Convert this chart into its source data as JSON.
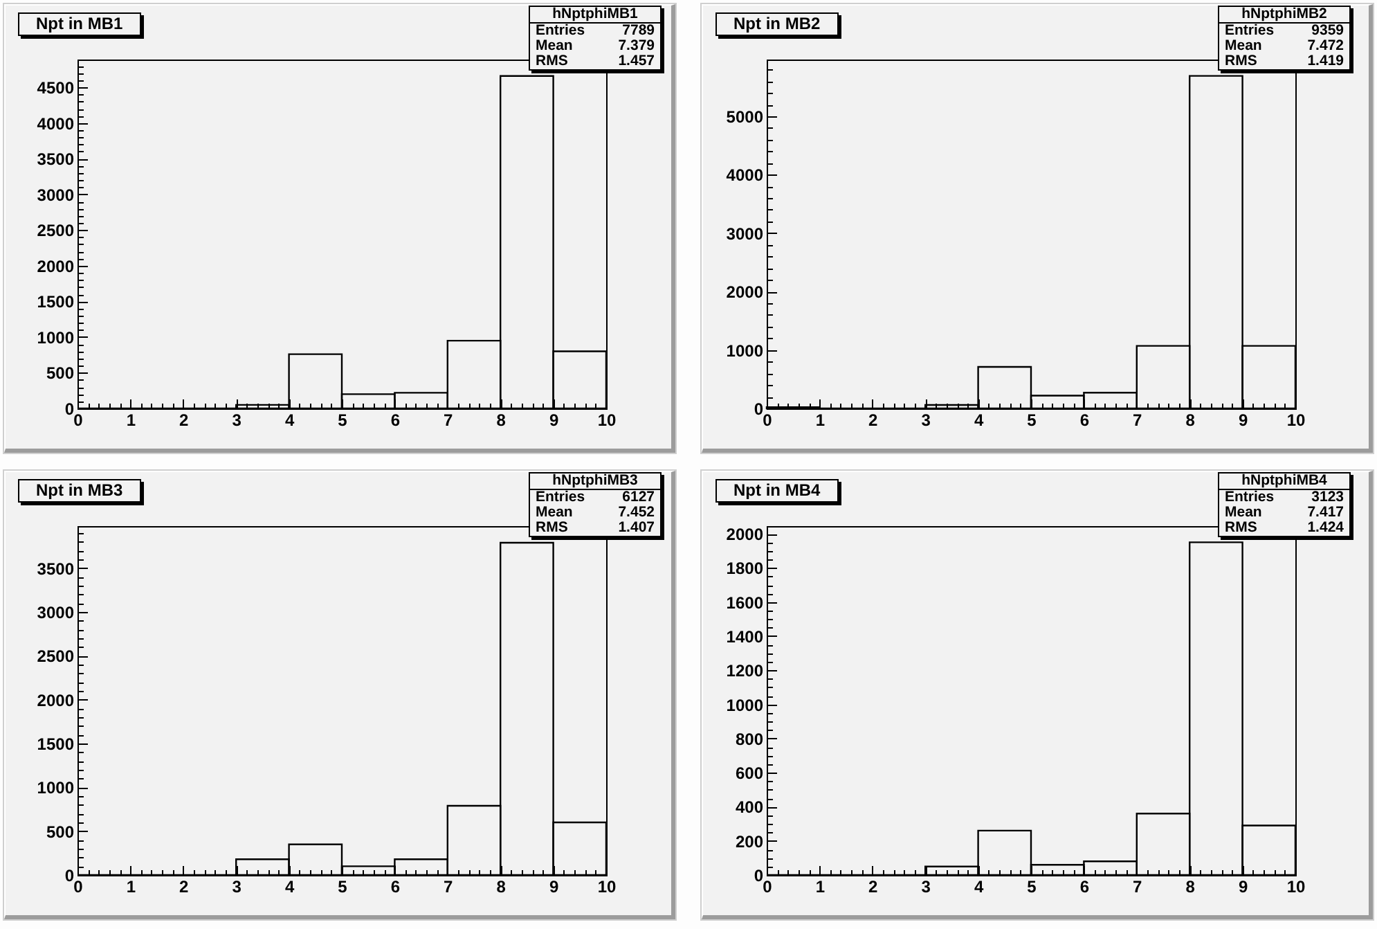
{
  "chart_data": [
    {
      "type": "histogram",
      "title": "Npt in MB1",
      "bins": [
        0,
        1,
        2,
        3,
        4,
        5,
        6,
        7,
        8,
        9,
        10
      ],
      "values": [
        0,
        0,
        0,
        50,
        760,
        200,
        220,
        950,
        4660,
        800
      ],
      "color": "#000000",
      "xlim": [
        0,
        10
      ],
      "ylim": [
        0,
        4890
      ],
      "xticks": [
        0,
        {
          "value": 0.2,
          "label": null
        },
        {
          "value": 0.4,
          "label": null
        },
        {
          "value": 0.6,
          "label": null
        },
        {
          "value": 0.8,
          "label": null
        },
        1,
        {
          "value": 1.2,
          "label": null
        },
        {
          "value": 1.4,
          "label": null
        },
        {
          "value": 1.6,
          "label": null
        },
        {
          "value": 1.8,
          "label": null
        },
        2,
        {
          "value": 2.2,
          "label": null
        },
        {
          "value": 2.4,
          "label": null
        },
        {
          "value": 2.6,
          "label": null
        },
        {
          "value": 2.8,
          "label": null
        },
        3,
        {
          "value": 3.2,
          "label": null
        },
        {
          "value": 3.4,
          "label": null
        },
        {
          "value": 3.6,
          "label": null
        },
        {
          "value": 3.8,
          "label": null
        },
        4,
        {
          "value": 4.2,
          "label": null
        },
        {
          "value": 4.4,
          "label": null
        },
        {
          "value": 4.6,
          "label": null
        },
        {
          "value": 4.8,
          "label": null
        },
        5,
        {
          "value": 5.2,
          "label": null
        },
        {
          "value": 5.4,
          "label": null
        },
        {
          "value": 5.6,
          "label": null
        },
        {
          "value": 5.8,
          "label": null
        },
        6,
        {
          "value": 6.2,
          "label": null
        },
        {
          "value": 6.4,
          "label": null
        },
        {
          "value": 6.6,
          "label": null
        },
        {
          "value": 6.8,
          "label": null
        },
        7,
        {
          "value": 7.2,
          "label": null
        },
        {
          "value": 7.4,
          "label": null
        },
        {
          "value": 7.6,
          "label": null
        },
        {
          "value": 7.8,
          "label": null
        },
        8,
        {
          "value": 8.2,
          "label": null
        },
        {
          "value": 8.4,
          "label": null
        },
        {
          "value": 8.6,
          "label": null
        },
        {
          "value": 8.8,
          "label": null
        },
        9,
        {
          "value": 9.2,
          "label": null
        },
        {
          "value": 9.4,
          "label": null
        },
        {
          "value": 9.6,
          "label": null
        },
        {
          "value": 9.8,
          "label": null
        },
        10
      ],
      "yticks": [
        0,
        {
          "value": 100,
          "label": null
        },
        {
          "value": 200,
          "label": null
        },
        {
          "value": 300,
          "label": null
        },
        {
          "value": 400,
          "label": null
        },
        500,
        {
          "value": 600,
          "label": null
        },
        {
          "value": 700,
          "label": null
        },
        {
          "value": 800,
          "label": null
        },
        {
          "value": 900,
          "label": null
        },
        1000,
        {
          "value": 1100,
          "label": null
        },
        {
          "value": 1200,
          "label": null
        },
        {
          "value": 1300,
          "label": null
        },
        {
          "value": 1400,
          "label": null
        },
        1500,
        {
          "value": 1600,
          "label": null
        },
        {
          "value": 1700,
          "label": null
        },
        {
          "value": 1800,
          "label": null
        },
        {
          "value": 1900,
          "label": null
        },
        2000,
        {
          "value": 2100,
          "label": null
        },
        {
          "value": 2200,
          "label": null
        },
        {
          "value": 2300,
          "label": null
        },
        {
          "value": 2400,
          "label": null
        },
        2500,
        {
          "value": 2600,
          "label": null
        },
        {
          "value": 2700,
          "label": null
        },
        {
          "value": 2800,
          "label": null
        },
        {
          "value": 2900,
          "label": null
        },
        3000,
        {
          "value": 3100,
          "label": null
        },
        {
          "value": 3200,
          "label": null
        },
        {
          "value": 3300,
          "label": null
        },
        {
          "value": 3400,
          "label": null
        },
        3500,
        {
          "value": 3600,
          "label": null
        },
        {
          "value": 3700,
          "label": null
        },
        {
          "value": 3800,
          "label": null
        },
        {
          "value": 3900,
          "label": null
        },
        4000,
        {
          "value": 4100,
          "label": null
        },
        {
          "value": 4200,
          "label": null
        },
        {
          "value": 4300,
          "label": null
        },
        {
          "value": 4400,
          "label": null
        },
        4500,
        {
          "value": 4600,
          "label": null
        },
        {
          "value": 4700,
          "label": null
        },
        {
          "value": 4800,
          "label": null
        }
      ],
      "annotations": [
        "hNptphiMB1",
        "Entries",
        "7789",
        "Mean",
        "7.379",
        "RMS",
        "1.457"
      ]
    },
    {
      "type": "histogram",
      "title": "Npt in MB2",
      "bins": [
        0,
        1,
        2,
        3,
        4,
        5,
        6,
        7,
        8,
        9,
        10
      ],
      "values": [
        20,
        0,
        0,
        60,
        710,
        220,
        270,
        1070,
        5690,
        1070
      ],
      "color": "#000000",
      "xlim": [
        0,
        10
      ],
      "ylim": [
        0,
        5970
      ],
      "xticks": [
        0,
        {
          "value": 0.2,
          "label": null
        },
        {
          "value": 0.4,
          "label": null
        },
        {
          "value": 0.6,
          "label": null
        },
        {
          "value": 0.8,
          "label": null
        },
        1,
        {
          "value": 1.2,
          "label": null
        },
        {
          "value": 1.4,
          "label": null
        },
        {
          "value": 1.6,
          "label": null
        },
        {
          "value": 1.8,
          "label": null
        },
        2,
        {
          "value": 2.2,
          "label": null
        },
        {
          "value": 2.4,
          "label": null
        },
        {
          "value": 2.6,
          "label": null
        },
        {
          "value": 2.8,
          "label": null
        },
        3,
        {
          "value": 3.2,
          "label": null
        },
        {
          "value": 3.4,
          "label": null
        },
        {
          "value": 3.6,
          "label": null
        },
        {
          "value": 3.8,
          "label": null
        },
        4,
        {
          "value": 4.2,
          "label": null
        },
        {
          "value": 4.4,
          "label": null
        },
        {
          "value": 4.6,
          "label": null
        },
        {
          "value": 4.8,
          "label": null
        },
        5,
        {
          "value": 5.2,
          "label": null
        },
        {
          "value": 5.4,
          "label": null
        },
        {
          "value": 5.6,
          "label": null
        },
        {
          "value": 5.8,
          "label": null
        },
        6,
        {
          "value": 6.2,
          "label": null
        },
        {
          "value": 6.4,
          "label": null
        },
        {
          "value": 6.6,
          "label": null
        },
        {
          "value": 6.8,
          "label": null
        },
        7,
        {
          "value": 7.2,
          "label": null
        },
        {
          "value": 7.4,
          "label": null
        },
        {
          "value": 7.6,
          "label": null
        },
        {
          "value": 7.8,
          "label": null
        },
        8,
        {
          "value": 8.2,
          "label": null
        },
        {
          "value": 8.4,
          "label": null
        },
        {
          "value": 8.6,
          "label": null
        },
        {
          "value": 8.8,
          "label": null
        },
        9,
        {
          "value": 9.2,
          "label": null
        },
        {
          "value": 9.4,
          "label": null
        },
        {
          "value": 9.6,
          "label": null
        },
        {
          "value": 9.8,
          "label": null
        },
        10
      ],
      "yticks": [
        0,
        {
          "value": 200,
          "label": null
        },
        {
          "value": 400,
          "label": null
        },
        {
          "value": 600,
          "label": null
        },
        {
          "value": 800,
          "label": null
        },
        1000,
        {
          "value": 1200,
          "label": null
        },
        {
          "value": 1400,
          "label": null
        },
        {
          "value": 1600,
          "label": null
        },
        {
          "value": 1800,
          "label": null
        },
        2000,
        {
          "value": 2200,
          "label": null
        },
        {
          "value": 2400,
          "label": null
        },
        {
          "value": 2600,
          "label": null
        },
        {
          "value": 2800,
          "label": null
        },
        3000,
        {
          "value": 3200,
          "label": null
        },
        {
          "value": 3400,
          "label": null
        },
        {
          "value": 3600,
          "label": null
        },
        {
          "value": 3800,
          "label": null
        },
        4000,
        {
          "value": 4200,
          "label": null
        },
        {
          "value": 4400,
          "label": null
        },
        {
          "value": 4600,
          "label": null
        },
        {
          "value": 4800,
          "label": null
        },
        5000,
        {
          "value": 5200,
          "label": null
        },
        {
          "value": 5400,
          "label": null
        },
        {
          "value": 5600,
          "label": null
        },
        {
          "value": 5800,
          "label": null
        }
      ],
      "annotations": [
        "hNptphiMB2",
        "Entries",
        "9359",
        "Mean",
        "7.472",
        "RMS",
        "1.419"
      ]
    },
    {
      "type": "histogram",
      "title": "Npt in MB3",
      "bins": [
        0,
        1,
        2,
        3,
        4,
        5,
        6,
        7,
        8,
        9,
        10
      ],
      "values": [
        0,
        0,
        0,
        180,
        350,
        100,
        180,
        790,
        3790,
        600
      ],
      "color": "#000000",
      "xlim": [
        0,
        10
      ],
      "ylim": [
        0,
        3980
      ],
      "xticks": [
        0,
        {
          "value": 0.2,
          "label": null
        },
        {
          "value": 0.4,
          "label": null
        },
        {
          "value": 0.6,
          "label": null
        },
        {
          "value": 0.8,
          "label": null
        },
        1,
        {
          "value": 1.2,
          "label": null
        },
        {
          "value": 1.4,
          "label": null
        },
        {
          "value": 1.6,
          "label": null
        },
        {
          "value": 1.8,
          "label": null
        },
        2,
        {
          "value": 2.2,
          "label": null
        },
        {
          "value": 2.4,
          "label": null
        },
        {
          "value": 2.6,
          "label": null
        },
        {
          "value": 2.8,
          "label": null
        },
        3,
        {
          "value": 3.2,
          "label": null
        },
        {
          "value": 3.4,
          "label": null
        },
        {
          "value": 3.6,
          "label": null
        },
        {
          "value": 3.8,
          "label": null
        },
        4,
        {
          "value": 4.2,
          "label": null
        },
        {
          "value": 4.4,
          "label": null
        },
        {
          "value": 4.6,
          "label": null
        },
        {
          "value": 4.8,
          "label": null
        },
        5,
        {
          "value": 5.2,
          "label": null
        },
        {
          "value": 5.4,
          "label": null
        },
        {
          "value": 5.6,
          "label": null
        },
        {
          "value": 5.8,
          "label": null
        },
        6,
        {
          "value": 6.2,
          "label": null
        },
        {
          "value": 6.4,
          "label": null
        },
        {
          "value": 6.6,
          "label": null
        },
        {
          "value": 6.8,
          "label": null
        },
        7,
        {
          "value": 7.2,
          "label": null
        },
        {
          "value": 7.4,
          "label": null
        },
        {
          "value": 7.6,
          "label": null
        },
        {
          "value": 7.8,
          "label": null
        },
        8,
        {
          "value": 8.2,
          "label": null
        },
        {
          "value": 8.4,
          "label": null
        },
        {
          "value": 8.6,
          "label": null
        },
        {
          "value": 8.8,
          "label": null
        },
        9,
        {
          "value": 9.2,
          "label": null
        },
        {
          "value": 9.4,
          "label": null
        },
        {
          "value": 9.6,
          "label": null
        },
        {
          "value": 9.8,
          "label": null
        },
        10
      ],
      "yticks": [
        0,
        {
          "value": 100,
          "label": null
        },
        {
          "value": 200,
          "label": null
        },
        {
          "value": 300,
          "label": null
        },
        {
          "value": 400,
          "label": null
        },
        500,
        {
          "value": 600,
          "label": null
        },
        {
          "value": 700,
          "label": null
        },
        {
          "value": 800,
          "label": null
        },
        {
          "value": 900,
          "label": null
        },
        1000,
        {
          "value": 1100,
          "label": null
        },
        {
          "value": 1200,
          "label": null
        },
        {
          "value": 1300,
          "label": null
        },
        {
          "value": 1400,
          "label": null
        },
        1500,
        {
          "value": 1600,
          "label": null
        },
        {
          "value": 1700,
          "label": null
        },
        {
          "value": 1800,
          "label": null
        },
        {
          "value": 1900,
          "label": null
        },
        2000,
        {
          "value": 2100,
          "label": null
        },
        {
          "value": 2200,
          "label": null
        },
        {
          "value": 2300,
          "label": null
        },
        {
          "value": 2400,
          "label": null
        },
        2500,
        {
          "value": 2600,
          "label": null
        },
        {
          "value": 2700,
          "label": null
        },
        {
          "value": 2800,
          "label": null
        },
        {
          "value": 2900,
          "label": null
        },
        3000,
        {
          "value": 3100,
          "label": null
        },
        {
          "value": 3200,
          "label": null
        },
        {
          "value": 3300,
          "label": null
        },
        {
          "value": 3400,
          "label": null
        },
        3500,
        {
          "value": 3600,
          "label": null
        },
        {
          "value": 3700,
          "label": null
        },
        {
          "value": 3800,
          "label": null
        },
        {
          "value": 3900,
          "label": null
        }
      ],
      "annotations": [
        "hNptphiMB3",
        "Entries",
        "6127",
        "Mean",
        "7.452",
        "RMS",
        "1.407"
      ]
    },
    {
      "type": "histogram",
      "title": "Npt in MB4",
      "bins": [
        0,
        1,
        2,
        3,
        4,
        5,
        6,
        7,
        8,
        9,
        10
      ],
      "values": [
        0,
        0,
        0,
        50,
        260,
        60,
        80,
        360,
        1950,
        290
      ],
      "color": "#000000",
      "xlim": [
        0,
        10
      ],
      "ylim": [
        0,
        2045
      ],
      "xticks": [
        0,
        {
          "value": 0.2,
          "label": null
        },
        {
          "value": 0.4,
          "label": null
        },
        {
          "value": 0.6,
          "label": null
        },
        {
          "value": 0.8,
          "label": null
        },
        1,
        {
          "value": 1.2,
          "label": null
        },
        {
          "value": 1.4,
          "label": null
        },
        {
          "value": 1.6,
          "label": null
        },
        {
          "value": 1.8,
          "label": null
        },
        2,
        {
          "value": 2.2,
          "label": null
        },
        {
          "value": 2.4,
          "label": null
        },
        {
          "value": 2.6,
          "label": null
        },
        {
          "value": 2.8,
          "label": null
        },
        3,
        {
          "value": 3.2,
          "label": null
        },
        {
          "value": 3.4,
          "label": null
        },
        {
          "value": 3.6,
          "label": null
        },
        {
          "value": 3.8,
          "label": null
        },
        4,
        {
          "value": 4.2,
          "label": null
        },
        {
          "value": 4.4,
          "label": null
        },
        {
          "value": 4.6,
          "label": null
        },
        {
          "value": 4.8,
          "label": null
        },
        5,
        {
          "value": 5.2,
          "label": null
        },
        {
          "value": 5.4,
          "label": null
        },
        {
          "value": 5.6,
          "label": null
        },
        {
          "value": 5.8,
          "label": null
        },
        6,
        {
          "value": 6.2,
          "label": null
        },
        {
          "value": 6.4,
          "label": null
        },
        {
          "value": 6.6,
          "label": null
        },
        {
          "value": 6.8,
          "label": null
        },
        7,
        {
          "value": 7.2,
          "label": null
        },
        {
          "value": 7.4,
          "label": null
        },
        {
          "value": 7.6,
          "label": null
        },
        {
          "value": 7.8,
          "label": null
        },
        8,
        {
          "value": 8.2,
          "label": null
        },
        {
          "value": 8.4,
          "label": null
        },
        {
          "value": 8.6,
          "label": null
        },
        {
          "value": 8.8,
          "label": null
        },
        9,
        {
          "value": 9.2,
          "label": null
        },
        {
          "value": 9.4,
          "label": null
        },
        {
          "value": 9.6,
          "label": null
        },
        {
          "value": 9.8,
          "label": null
        },
        10
      ],
      "yticks": [
        0,
        {
          "value": 50,
          "label": null
        },
        {
          "value": 100,
          "label": null
        },
        {
          "value": 150,
          "label": null
        },
        200,
        {
          "value": 250,
          "label": null
        },
        {
          "value": 300,
          "label": null
        },
        {
          "value": 350,
          "label": null
        },
        400,
        {
          "value": 450,
          "label": null
        },
        {
          "value": 500,
          "label": null
        },
        {
          "value": 550,
          "label": null
        },
        600,
        {
          "value": 650,
          "label": null
        },
        {
          "value": 700,
          "label": null
        },
        {
          "value": 750,
          "label": null
        },
        800,
        {
          "value": 850,
          "label": null
        },
        {
          "value": 900,
          "label": null
        },
        {
          "value": 950,
          "label": null
        },
        1000,
        {
          "value": 1050,
          "label": null
        },
        {
          "value": 1100,
          "label": null
        },
        {
          "value": 1150,
          "label": null
        },
        1200,
        {
          "value": 1250,
          "label": null
        },
        {
          "value": 1300,
          "label": null
        },
        {
          "value": 1350,
          "label": null
        },
        1400,
        {
          "value": 1450,
          "label": null
        },
        {
          "value": 1500,
          "label": null
        },
        {
          "value": 1550,
          "label": null
        },
        1600,
        {
          "value": 1650,
          "label": null
        },
        {
          "value": 1700,
          "label": null
        },
        {
          "value": 1750,
          "label": null
        },
        1800,
        {
          "value": 1850,
          "label": null
        },
        {
          "value": 1900,
          "label": null
        },
        {
          "value": 1950,
          "label": null
        },
        2000
      ],
      "annotations": [
        "hNptphiMB4",
        "Entries",
        "3123",
        "Mean",
        "7.417",
        "RMS",
        "1.424"
      ]
    }
  ]
}
